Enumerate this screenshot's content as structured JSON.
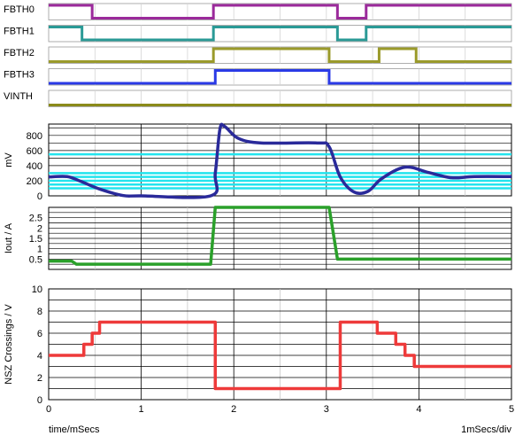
{
  "chart_data": {
    "type": "line",
    "x_unit_label": "time/mSecs",
    "scale_label": "1mSecs/div",
    "xlim": [
      0,
      5
    ],
    "x_ticks": [
      "0",
      "1",
      "2",
      "3",
      "4",
      "5"
    ],
    "digital_traces": [
      {
        "name": "FBTH0",
        "color": "#9b2a9b",
        "initial": 1,
        "toggles": [
          0.47,
          1.78,
          3.12,
          3.43
        ]
      },
      {
        "name": "FBTH1",
        "color": "#2a9a96",
        "initial": 1,
        "toggles": [
          0.36,
          1.78,
          3.12,
          3.43
        ]
      },
      {
        "name": "FBTH2",
        "color": "#9a9a2a",
        "initial": 0,
        "toggles": [
          1.78,
          3.03,
          3.57,
          3.97
        ]
      },
      {
        "name": "FBTH3",
        "color": "#2a3ae6",
        "initial": 0,
        "toggles": [
          1.8,
          3.03
        ]
      },
      {
        "name": "VINTH",
        "color": "#8a8a1a",
        "initial": 0,
        "toggles": []
      }
    ],
    "panels": [
      {
        "ylabel": "mV",
        "ylim": [
          0,
          950
        ],
        "yticks": [
          0,
          200,
          400,
          600,
          800
        ],
        "bands": [
          {
            "value": 550,
            "color": "#22e4ee"
          },
          {
            "value": 300,
            "color": "#22e4ee"
          },
          {
            "value": 250,
            "color": "#22e4ee"
          },
          {
            "value": 200,
            "color": "#22e4ee"
          },
          {
            "value": 150,
            "color": "#22e4ee"
          },
          {
            "value": 100,
            "color": "#22e4ee"
          }
        ],
        "series": [
          {
            "color": "#2a2a9a",
            "smooth": true,
            "points": [
              [
                0,
                250
              ],
              [
                0.2,
                255
              ],
              [
                0.35,
                190
              ],
              [
                0.55,
                90
              ],
              [
                0.8,
                5
              ],
              [
                1.0,
                0
              ],
              [
                1.75,
                0
              ],
              [
                1.8,
                300
              ],
              [
                1.85,
                880
              ],
              [
                1.9,
                920
              ],
              [
                2.05,
                760
              ],
              [
                2.3,
                700
              ],
              [
                2.9,
                700
              ],
              [
                3.03,
                650
              ],
              [
                3.15,
                250
              ],
              [
                3.3,
                50
              ],
              [
                3.45,
                60
              ],
              [
                3.6,
                230
              ],
              [
                3.85,
                380
              ],
              [
                4.1,
                310
              ],
              [
                4.35,
                240
              ],
              [
                4.6,
                255
              ],
              [
                5.0,
                255
              ]
            ]
          }
        ]
      },
      {
        "ylabel": "Iout / A",
        "ylim": [
          0,
          3.0
        ],
        "yticks": [
          0.5,
          1,
          1.5,
          2,
          2.5
        ],
        "series": [
          {
            "color": "#2aa02a",
            "smooth": false,
            "points": [
              [
                0,
                0.4
              ],
              [
                0.25,
                0.4
              ],
              [
                0.3,
                0.25
              ],
              [
                1.75,
                0.25
              ],
              [
                1.8,
                3.0
              ],
              [
                3.03,
                3.0
              ],
              [
                3.12,
                0.5
              ],
              [
                5.0,
                0.5
              ]
            ]
          }
        ]
      },
      {
        "ylabel": "NSZ Crossings / V",
        "ylim": [
          0,
          10
        ],
        "yticks": [
          0,
          2,
          4,
          6,
          8,
          10
        ],
        "series": [
          {
            "color": "#ee3a3a",
            "smooth": false,
            "points": [
              [
                0,
                4
              ],
              [
                0.38,
                4
              ],
              [
                0.38,
                5
              ],
              [
                0.47,
                5
              ],
              [
                0.47,
                6
              ],
              [
                0.55,
                6
              ],
              [
                0.55,
                7
              ],
              [
                1.8,
                7
              ],
              [
                1.8,
                1
              ],
              [
                3.15,
                1
              ],
              [
                3.15,
                7
              ],
              [
                3.55,
                7
              ],
              [
                3.55,
                6
              ],
              [
                3.75,
                6
              ],
              [
                3.75,
                5
              ],
              [
                3.85,
                5
              ],
              [
                3.85,
                4
              ],
              [
                3.95,
                4
              ],
              [
                3.95,
                3
              ],
              [
                5.0,
                3
              ]
            ]
          }
        ]
      }
    ]
  }
}
